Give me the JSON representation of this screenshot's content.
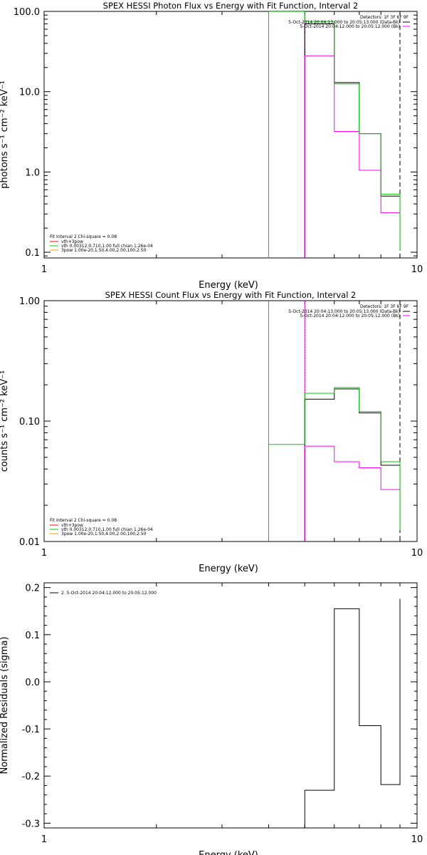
{
  "chart_data": [
    {
      "type": "line",
      "title": "SPEX HESSI Photon Flux vs Energy with Fit Function, Interval 2",
      "xlabel": "Energy (keV)",
      "ylabel": "photons s⁻¹ cm⁻² keV⁻¹",
      "xscale": "log",
      "yscale": "log",
      "xlim": [
        1,
        10
      ],
      "ylim": [
        0.085,
        100
      ],
      "xtick_labels": [
        {
          "v": 1,
          "t": "1"
        },
        {
          "v": 10,
          "t": "10"
        }
      ],
      "ytick_labels": [
        {
          "v": 0.1,
          "t": "0.1"
        },
        {
          "v": 1,
          "t": "1.0"
        },
        {
          "v": 10,
          "t": "10.0"
        },
        {
          "v": 100,
          "t": "100.0"
        }
      ],
      "series": [
        {
          "color": "#000000",
          "edges": [
            5,
            6,
            7,
            8,
            9
          ],
          "values": [
            70,
            13,
            3.0,
            0.5,
            0.11
          ]
        },
        {
          "color": "#ff00ff",
          "edges": [
            5,
            6,
            7,
            8,
            9
          ],
          "values": [
            28,
            3.2,
            1.05,
            0.31,
            0.19
          ]
        },
        {
          "color": "#00cc00",
          "edges": [
            4,
            5,
            6,
            7,
            8,
            9
          ],
          "values": [
            100,
            75,
            12.5,
            3.0,
            0.53,
            0.105
          ]
        }
      ],
      "vlines": [
        {
          "x": 4,
          "color": "#00cc00",
          "style": "solid"
        },
        {
          "x": 5,
          "color": "#000000",
          "style": "dotted"
        },
        {
          "x": 5,
          "color": "#ff00ff",
          "style": "solid"
        },
        {
          "x": 9,
          "color": "#000000",
          "style": "dashed"
        }
      ],
      "legend_left": {
        "header": "Fit Interval 2   Chi-square = 0.08",
        "items": [
          {
            "color": "#ff0000",
            "text": "vth+3pow"
          },
          {
            "color": "#00cc00",
            "text": "vth 0.00312,0.710,1.00   full chian 1.26e-04"
          },
          {
            "color": "#ff9900",
            "text": "3pow 1.00e-20,1.50,4.00,2.00,100,2.50"
          }
        ]
      },
      "legend_right": {
        "header": "Detectors: 1F 3F 6F 9F",
        "items": [
          {
            "color": "#000000",
            "text": "5-Oct-2014 20:04:13.000 to 20:05:13.000 (Data-Bk)"
          },
          {
            "color": "#ff00ff",
            "text": "5-Oct-2014 20:04:12.000 to 20:05:12.000 (Bk)"
          }
        ]
      }
    },
    {
      "type": "line",
      "title": "SPEX HESSI Count Flux vs Energy with Fit Function, Interval 2",
      "xlabel": "Energy (keV)",
      "ylabel": "counts s⁻¹ cm⁻² keV⁻¹",
      "xscale": "log",
      "yscale": "log",
      "xlim": [
        1,
        10
      ],
      "ylim": [
        0.01,
        1
      ],
      "xtick_labels": [
        {
          "v": 1,
          "t": "1"
        },
        {
          "v": 10,
          "t": "10"
        }
      ],
      "ytick_labels": [
        {
          "v": 0.01,
          "t": "0.01"
        },
        {
          "v": 0.1,
          "t": "0.10"
        },
        {
          "v": 1,
          "t": "1.00"
        }
      ],
      "series": [
        {
          "color": "#000000",
          "edges": [
            5,
            6,
            7,
            8,
            9
          ],
          "values": [
            0.152,
            0.185,
            0.117,
            0.043,
            0.0132
          ]
        },
        {
          "color": "#ff00ff",
          "edges": [
            5,
            6,
            7,
            8,
            9
          ],
          "values": [
            0.062,
            0.046,
            0.041,
            0.027,
            0.022
          ]
        },
        {
          "color": "#00cc00",
          "edges": [
            4,
            5,
            6,
            7,
            8,
            9
          ],
          "values": [
            0.064,
            0.17,
            0.19,
            0.12,
            0.046,
            0.0125
          ]
        }
      ],
      "vlines": [
        {
          "x": 4,
          "color": "#00cc00",
          "style": "solid"
        },
        {
          "x": 5,
          "color": "#000000",
          "style": "dotted"
        },
        {
          "x": 5,
          "color": "#ff00ff",
          "style": "solid"
        },
        {
          "x": 9,
          "color": "#000000",
          "style": "dashed"
        }
      ],
      "legend_left": {
        "header": "Fit Interval 2   Chi-square = 0.08",
        "items": [
          {
            "color": "#ff0000",
            "text": "vth+3pow"
          },
          {
            "color": "#00cc00",
            "text": "vth 0.00312,0.710,1.00   full chian 1.26e-04"
          },
          {
            "color": "#ff9900",
            "text": "3pow 1.00e-20,1.50,4.00,2.00,100,2.50"
          }
        ]
      },
      "legend_right": {
        "header": "Detectors: 1F 3F 6F 9F",
        "items": [
          {
            "color": "#000000",
            "text": "5-Oct-2014 20:04:13.000 to 20:05:13.000 (Data-Bk)"
          },
          {
            "color": "#ff00ff",
            "text": "5-Oct-2014 20:04:12.000 to 20:05:12.000 (Bk)"
          }
        ]
      }
    },
    {
      "type": "line",
      "title": "",
      "xlabel": "Energy (keV)",
      "ylabel": "Normalized Residuals (sigma)",
      "xscale": "log",
      "yscale": "linear",
      "xlim": [
        1,
        10
      ],
      "ylim": [
        -0.31,
        0.21
      ],
      "xtick_labels": [
        {
          "v": 1,
          "t": "1"
        },
        {
          "v": 10,
          "t": "10"
        }
      ],
      "ytick_labels": [
        {
          "v": -0.3,
          "t": "-0.3"
        },
        {
          "v": -0.2,
          "t": "-0.2"
        },
        {
          "v": -0.1,
          "t": "-0.1"
        },
        {
          "v": 0.0,
          "t": "0.0"
        },
        {
          "v": 0.1,
          "t": "0.1"
        },
        {
          "v": 0.2,
          "t": "0.2"
        }
      ],
      "series": [
        {
          "color": "#000000",
          "edges": [
            5,
            6,
            7,
            8,
            9
          ],
          "values": [
            -0.23,
            0.155,
            -0.093,
            -0.218,
            0.176
          ]
        }
      ],
      "vlines": [],
      "legend_left": {
        "header": "",
        "items": [
          {
            "color": "#000000",
            "text": "2.  5-Oct-2014 20:04:12.000 to 20:05:12.000"
          }
        ]
      },
      "legend_right": {
        "header": "",
        "items": []
      }
    }
  ]
}
